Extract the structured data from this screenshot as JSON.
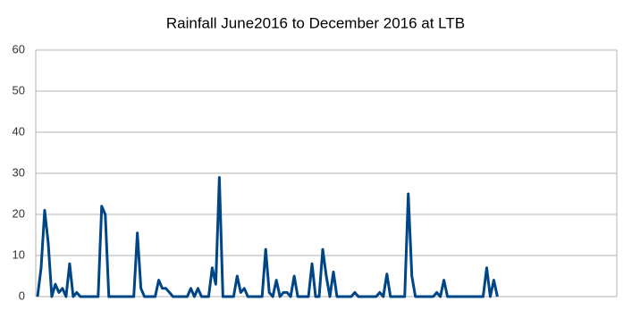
{
  "chart_data": {
    "type": "line",
    "title": "Rainfall June2016 to December 2016 at LTB",
    "series": [
      {
        "color": "#004586",
        "values": [
          0,
          7,
          21,
          13,
          0,
          3,
          1,
          2,
          0,
          8,
          0,
          1,
          0,
          0,
          0,
          0,
          0,
          0,
          22,
          20,
          0,
          0,
          0,
          0,
          0,
          0,
          0,
          0,
          15.5,
          2,
          0,
          0,
          0,
          0,
          4,
          2,
          2,
          1,
          0,
          0,
          0,
          0,
          0,
          2,
          0,
          2,
          0,
          0,
          0,
          7,
          3,
          29,
          0,
          0,
          0,
          0,
          5,
          1,
          2,
          0,
          0,
          0,
          0,
          0,
          11.5,
          1,
          0,
          4,
          0,
          1,
          1,
          0,
          5,
          0,
          0,
          0,
          0,
          8,
          0,
          0,
          11.5,
          5,
          0,
          6,
          0,
          0,
          0,
          0,
          0,
          1,
          0,
          0,
          0,
          0,
          0,
          0,
          1,
          0,
          5.5,
          0,
          0,
          0,
          0,
          0,
          25,
          5,
          0,
          0,
          0,
          0,
          0,
          0,
          1,
          0,
          4,
          0,
          0,
          0,
          0,
          0,
          0,
          0,
          0,
          0,
          0,
          0,
          7,
          0,
          4,
          0,
          null,
          null,
          null,
          null,
          null,
          null,
          null,
          null,
          null,
          null,
          null,
          null,
          null,
          null,
          null,
          null,
          null,
          null,
          null,
          null,
          null,
          null,
          null,
          null,
          null,
          null,
          null,
          null,
          null,
          null,
          null,
          null,
          null
        ]
      }
    ],
    "ylim": [
      0,
      60
    ],
    "yticks": [
      0,
      10,
      20,
      30,
      40,
      50,
      60
    ],
    "grid": true
  }
}
